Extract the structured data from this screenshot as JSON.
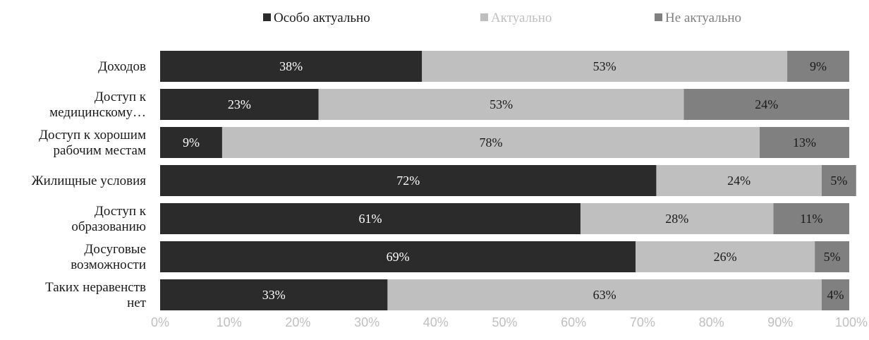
{
  "chart_data": {
    "type": "bar",
    "orientation": "horizontal",
    "stacked": true,
    "categories": [
      [
        "Доходов"
      ],
      [
        "Доступ к",
        "медицинскому…"
      ],
      [
        "Доступ к хорошим",
        "рабочим местам"
      ],
      [
        "Жилищные условия"
      ],
      [
        "Доступ к",
        "образованию"
      ],
      [
        "Досуговые",
        "возможности"
      ],
      [
        "Таких неравенств",
        "нет"
      ]
    ],
    "series": [
      {
        "name": "Особо актуально",
        "color": "#2b2b2b",
        "label_color": "#ffffff",
        "legend_text_color": "#1a1a1a",
        "values": [
          38,
          23,
          9,
          72,
          61,
          69,
          33
        ]
      },
      {
        "name": "Актуально",
        "color": "#bfbfbf",
        "label_color": "#1a1a1a",
        "legend_text_color": "#bfbfbf",
        "values": [
          53,
          53,
          78,
          24,
          28,
          26,
          63
        ]
      },
      {
        "name": "Не актуально",
        "color": "#808080",
        "label_color": "#1a1a1a",
        "legend_text_color": "#808080",
        "values": [
          9,
          24,
          13,
          5,
          11,
          5,
          4
        ]
      }
    ],
    "value_suffix": "%",
    "xlim": [
      0,
      100
    ],
    "x_ticks": [
      "0%",
      "10%",
      "20%",
      "30%",
      "40%",
      "50%",
      "60%",
      "70%",
      "80%",
      "90%",
      "100%"
    ],
    "grid": false,
    "legend_position": "top"
  }
}
